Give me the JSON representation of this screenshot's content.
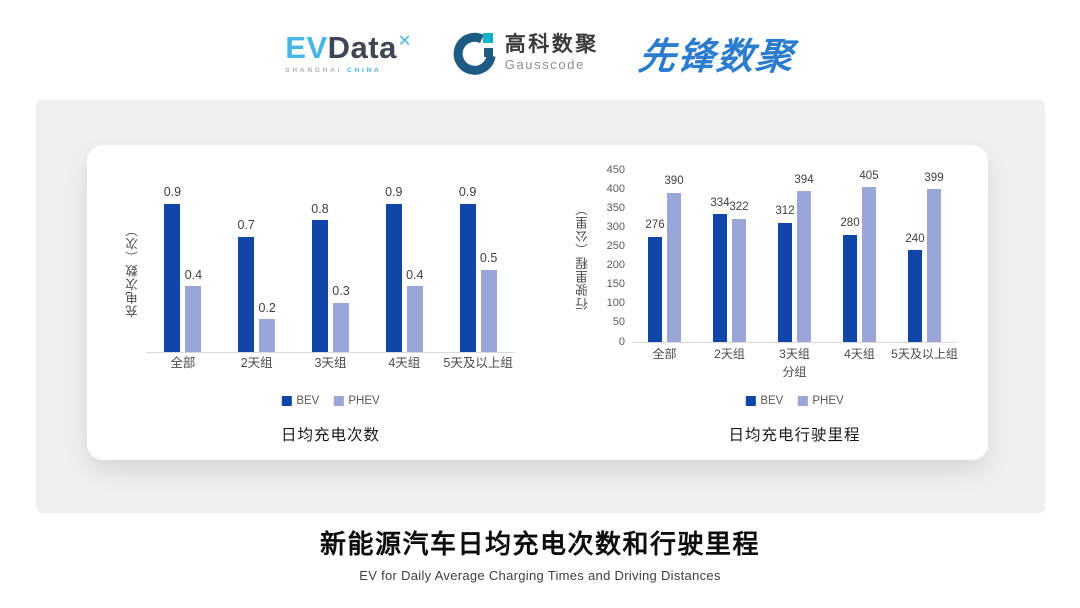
{
  "header": {
    "evdata": {
      "ev": "EV",
      "data": "Data",
      "spark": "✕",
      "sub_left": "SHANGHAI",
      "sub_right": "CHINA"
    },
    "gausscode": {
      "cn": "高科数聚",
      "en": "Gausscode"
    },
    "pioneer": {
      "text": "先锋数聚"
    }
  },
  "colors": {
    "bev": "#1046A8",
    "phev": "#9AA5D8",
    "panel_bg": "#F0F0F1",
    "card_bg": "#FFFFFF",
    "axis_line": "#D9D9D9",
    "value_label": "#3F3F3F",
    "tick_label": "#595959",
    "legend_label": "#595959",
    "evdata_blue": "#45B6E6",
    "evdata_dark": "#3E4653",
    "gauss_dark": "#1D5A84",
    "gauss_teal": "#12B2C6",
    "pioneer_blue": "#2B7CCE"
  },
  "chart_data": [
    {
      "type": "bar",
      "title": "日均充电次数",
      "ylabel": "充电次数（次）",
      "xlabel": "",
      "categories": [
        "全部",
        "2天组",
        "3天组",
        "4天组",
        "5天及以上组"
      ],
      "series": [
        {
          "name": "BEV",
          "values": [
            0.9,
            0.7,
            0.8,
            0.9,
            0.9
          ]
        },
        {
          "name": "PHEV",
          "values": [
            0.4,
            0.2,
            0.3,
            0.4,
            0.5
          ]
        }
      ],
      "ylim": [
        0,
        1
      ],
      "y_ticks_visible": false,
      "grid": false,
      "legend_position": "bottom",
      "label_format": "one-decimal"
    },
    {
      "type": "bar",
      "title": "日均充电行驶里程",
      "ylabel": "行驶里程（公里）",
      "xlabel": "分组",
      "categories": [
        "全部",
        "2天组",
        "3天组",
        "4天组",
        "5天及以上组"
      ],
      "series": [
        {
          "name": "BEV",
          "values": [
            276,
            334,
            312,
            280,
            240
          ]
        },
        {
          "name": "PHEV",
          "values": [
            390,
            322,
            394,
            405,
            399
          ]
        }
      ],
      "ylim": [
        0,
        450
      ],
      "y_ticks": [
        450,
        400,
        350,
        300,
        250,
        200,
        150,
        100,
        50,
        0
      ],
      "y_ticks_visible": true,
      "grid": false,
      "legend_position": "bottom",
      "label_format": "integer"
    }
  ],
  "footer": {
    "title": "新能源汽车日均充电次数和行驶里程",
    "subtitle": "EV for Daily Average Charging Times and Driving Distances"
  }
}
